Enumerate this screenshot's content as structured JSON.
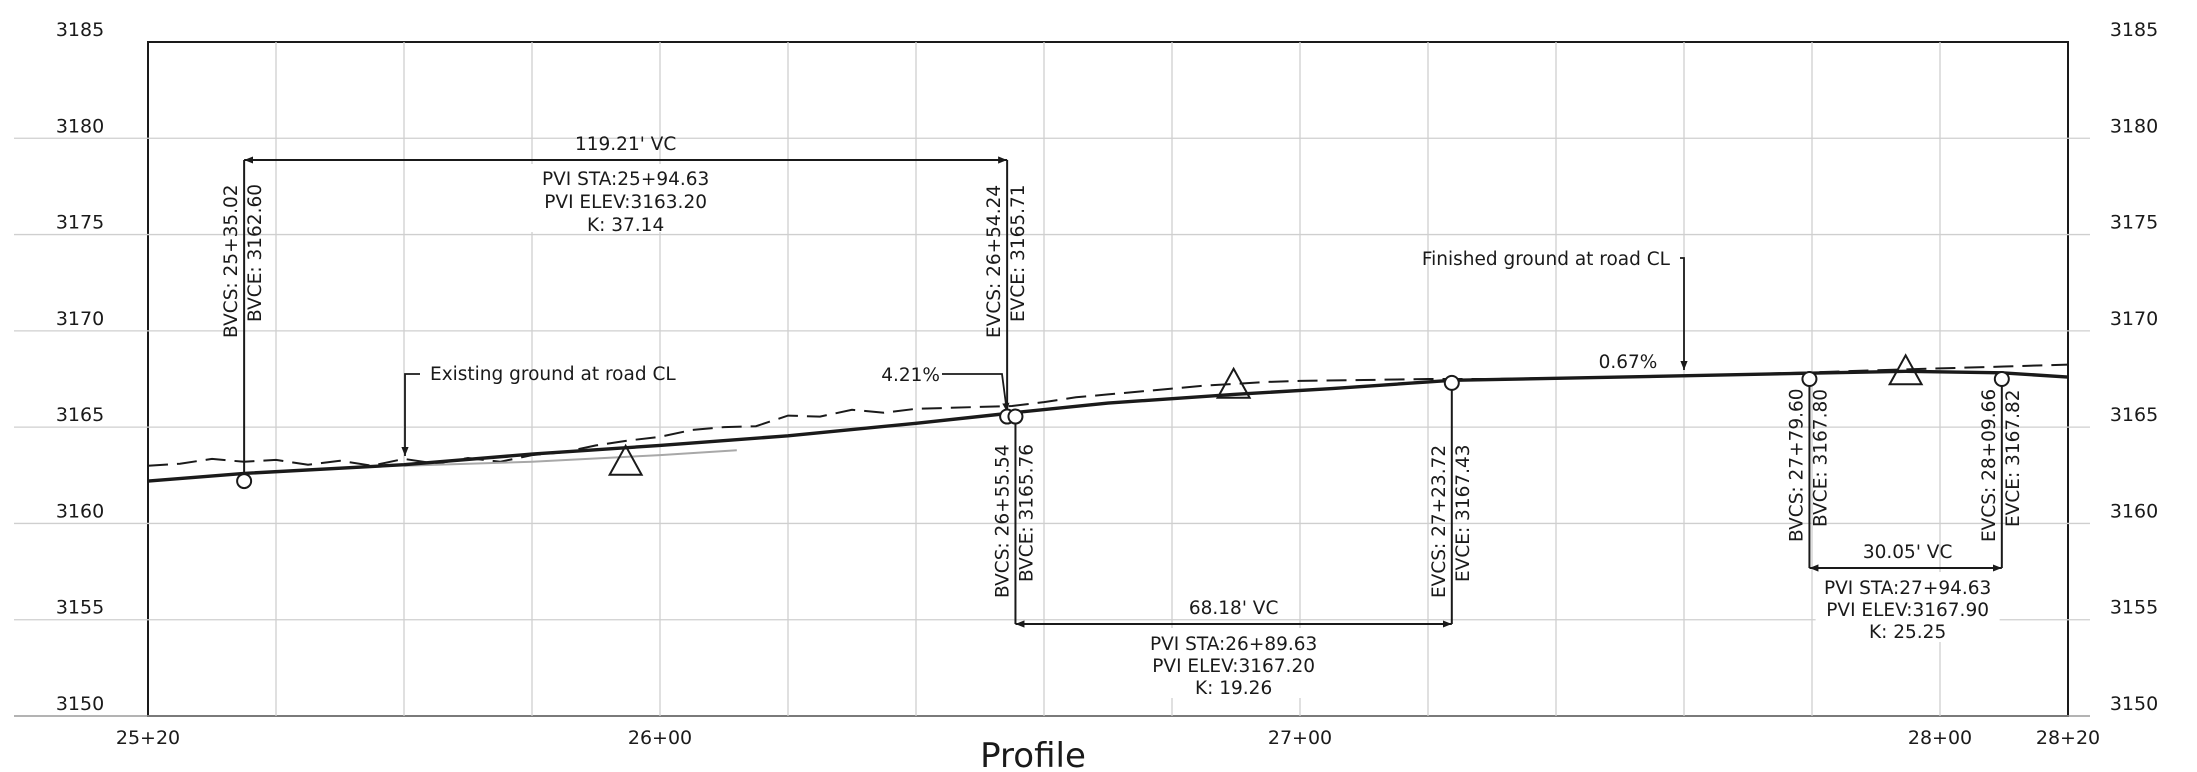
{
  "chart_data": {
    "type": "profile",
    "title": "Profile",
    "x_range": [
      2520,
      2820
    ],
    "y_range": [
      3150,
      3185
    ],
    "x_ticks": [
      {
        "x": 2520,
        "label": "25+20"
      },
      {
        "x": 2600,
        "label": "26+00"
      },
      {
        "x": 2700,
        "label": "27+00"
      },
      {
        "x": 2800,
        "label": "28+00"
      },
      {
        "x": 2820,
        "label": "28+20"
      }
    ],
    "y_ticks": [
      3150,
      3155,
      3160,
      3165,
      3170,
      3175,
      3180,
      3185
    ],
    "vgrid": [
      2540,
      2560,
      2580,
      2600,
      2620,
      2640,
      2660,
      2680,
      2700,
      2720,
      2740,
      2760,
      2780,
      2800
    ],
    "hgrid": [
      3155,
      3160,
      3165,
      3170,
      3175,
      3180
    ],
    "finished_ground": [
      {
        "x": 2520,
        "y": 3162.2
      },
      {
        "x": 2535.02,
        "y": 3162.6
      },
      {
        "x": 2560,
        "y": 3163.05
      },
      {
        "x": 2580,
        "y": 3163.6
      },
      {
        "x": 2600,
        "y": 3164.05
      },
      {
        "x": 2620,
        "y": 3164.55
      },
      {
        "x": 2640,
        "y": 3165.2
      },
      {
        "x": 2654.24,
        "y": 3165.71
      },
      {
        "x": 2655.54,
        "y": 3165.76
      },
      {
        "x": 2670,
        "y": 3166.25
      },
      {
        "x": 2689.63,
        "y": 3166.7
      },
      {
        "x": 2705,
        "y": 3167.0
      },
      {
        "x": 2723.72,
        "y": 3167.43
      },
      {
        "x": 2750,
        "y": 3167.6
      },
      {
        "x": 2779.6,
        "y": 3167.8
      },
      {
        "x": 2794.63,
        "y": 3167.9
      },
      {
        "x": 2809.66,
        "y": 3167.82
      },
      {
        "x": 2820,
        "y": 3167.6
      }
    ],
    "existing_ground": [
      {
        "x": 2520,
        "y": 3163.0
      },
      {
        "x": 2525,
        "y": 3163.1
      },
      {
        "x": 2530,
        "y": 3163.35
      },
      {
        "x": 2535,
        "y": 3163.2
      },
      {
        "x": 2540,
        "y": 3163.3
      },
      {
        "x": 2545,
        "y": 3163.05
      },
      {
        "x": 2550,
        "y": 3163.25
      },
      {
        "x": 2555,
        "y": 3163.0
      },
      {
        "x": 2560,
        "y": 3163.35
      },
      {
        "x": 2565,
        "y": 3163.1
      },
      {
        "x": 2570,
        "y": 3163.4
      },
      {
        "x": 2575,
        "y": 3163.2
      },
      {
        "x": 2580,
        "y": 3163.55
      },
      {
        "x": 2585,
        "y": 3163.7
      },
      {
        "x": 2590,
        "y": 3164.05
      },
      {
        "x": 2595,
        "y": 3164.3
      },
      {
        "x": 2600,
        "y": 3164.5
      },
      {
        "x": 2605,
        "y": 3164.85
      },
      {
        "x": 2610,
        "y": 3165.0
      },
      {
        "x": 2615,
        "y": 3165.05
      },
      {
        "x": 2620,
        "y": 3165.6
      },
      {
        "x": 2625,
        "y": 3165.55
      },
      {
        "x": 2630,
        "y": 3165.9
      },
      {
        "x": 2635,
        "y": 3165.75
      },
      {
        "x": 2640,
        "y": 3165.95
      },
      {
        "x": 2645,
        "y": 3166.0
      },
      {
        "x": 2650,
        "y": 3166.05
      },
      {
        "x": 2655,
        "y": 3166.1
      },
      {
        "x": 2660,
        "y": 3166.3
      },
      {
        "x": 2665,
        "y": 3166.55
      },
      {
        "x": 2670,
        "y": 3166.7
      },
      {
        "x": 2675,
        "y": 3166.85
      },
      {
        "x": 2680,
        "y": 3167.0
      },
      {
        "x": 2685,
        "y": 3167.15
      },
      {
        "x": 2690,
        "y": 3167.25
      },
      {
        "x": 2695,
        "y": 3167.35
      },
      {
        "x": 2700,
        "y": 3167.4
      },
      {
        "x": 2710,
        "y": 3167.45
      },
      {
        "x": 2720,
        "y": 3167.5
      },
      {
        "x": 2730,
        "y": 3167.5
      },
      {
        "x": 2740,
        "y": 3167.55
      },
      {
        "x": 2750,
        "y": 3167.6
      },
      {
        "x": 2760,
        "y": 3167.65
      },
      {
        "x": 2770,
        "y": 3167.75
      },
      {
        "x": 2780,
        "y": 3167.85
      },
      {
        "x": 2790,
        "y": 3167.95
      },
      {
        "x": 2800,
        "y": 3168.05
      },
      {
        "x": 2810,
        "y": 3168.15
      },
      {
        "x": 2820,
        "y": 3168.25
      }
    ],
    "gray_line": [
      {
        "x": 2560,
        "y": 3163.0
      },
      {
        "x": 2580,
        "y": 3163.2
      },
      {
        "x": 2600,
        "y": 3163.55
      },
      {
        "x": 2612,
        "y": 3163.8
      }
    ],
    "circles": [
      {
        "x": 2535.02,
        "y": 3162.2
      },
      {
        "x": 2654.24,
        "y": 3165.55
      },
      {
        "x": 2655.54,
        "y": 3165.55
      },
      {
        "x": 2723.72,
        "y": 3167.3
      },
      {
        "x": 2779.6,
        "y": 3167.5
      },
      {
        "x": 2809.66,
        "y": 3167.5
      }
    ],
    "pvi_triangles": [
      {
        "x": 2594.63,
        "y": 3163.2
      },
      {
        "x": 2689.63,
        "y": 3167.2
      },
      {
        "x": 2794.63,
        "y": 3167.9
      }
    ],
    "vertical_curves": [
      {
        "bvcs": "BVCS: 25+35.02",
        "bvce": "BVCE: 3162.60",
        "evcs": "EVCS: 26+54.24",
        "evce": "EVCE: 3165.71",
        "length": "119.21' VC",
        "pvi_sta": "PVI STA:25+94.63",
        "pvi_elev": "PVI ELEV:3163.20",
        "k": "K: 37.14"
      },
      {
        "bvcs": "BVCS: 26+55.54",
        "bvce": "BVCE: 3165.76",
        "evcs": "EVCS: 27+23.72",
        "evce": "EVCE: 3167.43",
        "length": "68.18' VC",
        "pvi_sta": "PVI STA:26+89.63",
        "pvi_elev": "PVI ELEV:3167.20",
        "k": "K: 19.26"
      },
      {
        "bvcs": "BVCS: 27+79.60",
        "bvce": "BVCE: 3167.80",
        "evcs": "EVCS: 28+09.66",
        "evce": "EVCE: 3167.82",
        "length": "30.05' VC",
        "pvi_sta": "PVI STA:27+94.63",
        "pvi_elev": "PVI ELEV:3167.90",
        "k": "K: 25.25"
      }
    ],
    "grades": [
      "4.21%",
      "0.67%"
    ],
    "callouts": {
      "existing": "Existing ground at road CL",
      "finished": "Finished ground at road CL"
    }
  }
}
